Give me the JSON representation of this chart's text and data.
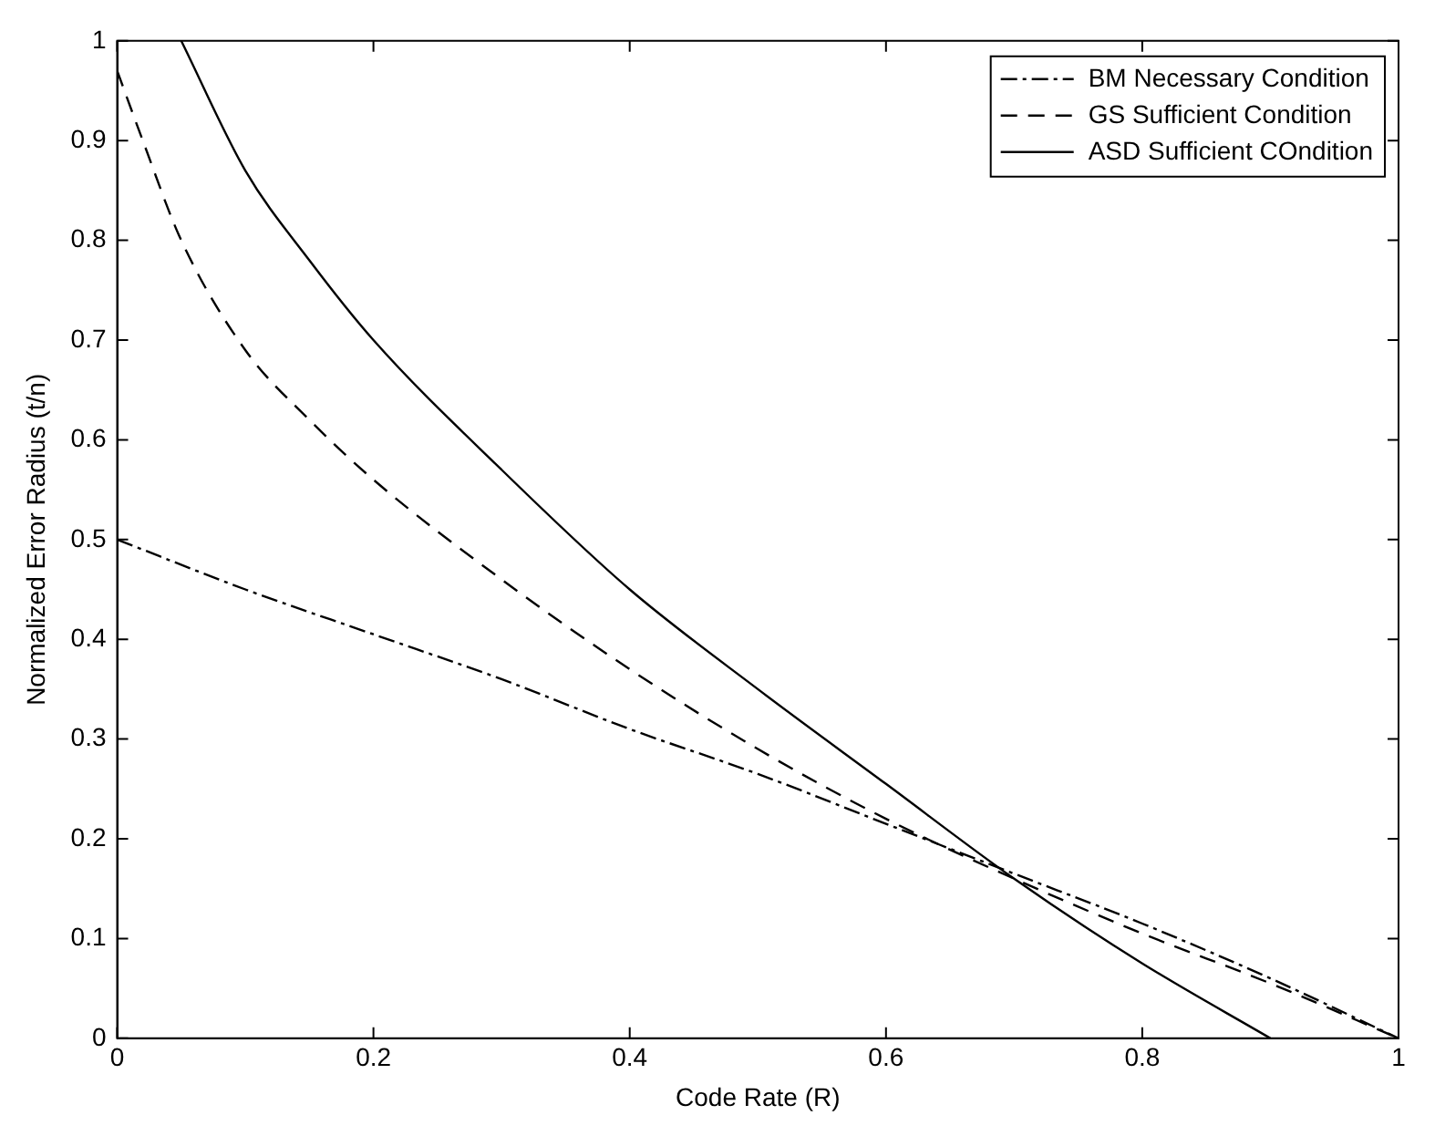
{
  "chart_data": {
    "type": "line",
    "xlabel": "Code Rate (R)",
    "ylabel": "Normalized Error Radius (t/n)",
    "xlim": [
      0,
      1
    ],
    "ylim": [
      0,
      1
    ],
    "xticks": [
      0,
      0.2,
      0.4,
      0.6,
      0.8,
      1
    ],
    "yticks": [
      0,
      0.1,
      0.2,
      0.3,
      0.4,
      0.5,
      0.6,
      0.7,
      0.8,
      0.9,
      1
    ],
    "grid": false,
    "legend": "top right",
    "marker": "none",
    "series": [
      {
        "name": "BM Necessary Condition",
        "color": "#000000",
        "line_style": "dashdot",
        "x": [
          0,
          0.1,
          0.2,
          0.3,
          0.4,
          0.5,
          0.6,
          0.7,
          0.8,
          0.9,
          1
        ],
        "values": [
          0.5,
          0.45,
          0.405,
          0.36,
          0.31,
          0.265,
          0.215,
          0.165,
          0.115,
          0.06,
          0
        ]
      },
      {
        "name": "GS Sufficient Condition",
        "color": "#000000",
        "line_style": "dashed",
        "x": [
          0,
          0.02,
          0.05,
          0.1,
          0.15,
          0.2,
          0.3,
          0.4,
          0.5,
          0.6,
          0.7,
          0.8,
          0.9,
          1
        ],
        "values": [
          0.97,
          0.9,
          0.8,
          0.69,
          0.62,
          0.56,
          0.46,
          0.37,
          0.29,
          0.22,
          0.16,
          0.105,
          0.055,
          0
        ]
      },
      {
        "name": "ASD Sufficient COndition",
        "color": "#000000",
        "line_style": "solid",
        "x": [
          0.05,
          0.1,
          0.15,
          0.2,
          0.3,
          0.4,
          0.5,
          0.6,
          0.7,
          0.8,
          0.9
        ],
        "values": [
          1,
          0.87,
          0.78,
          0.7,
          0.57,
          0.45,
          0.35,
          0.255,
          0.16,
          0.075,
          0
        ]
      }
    ]
  }
}
